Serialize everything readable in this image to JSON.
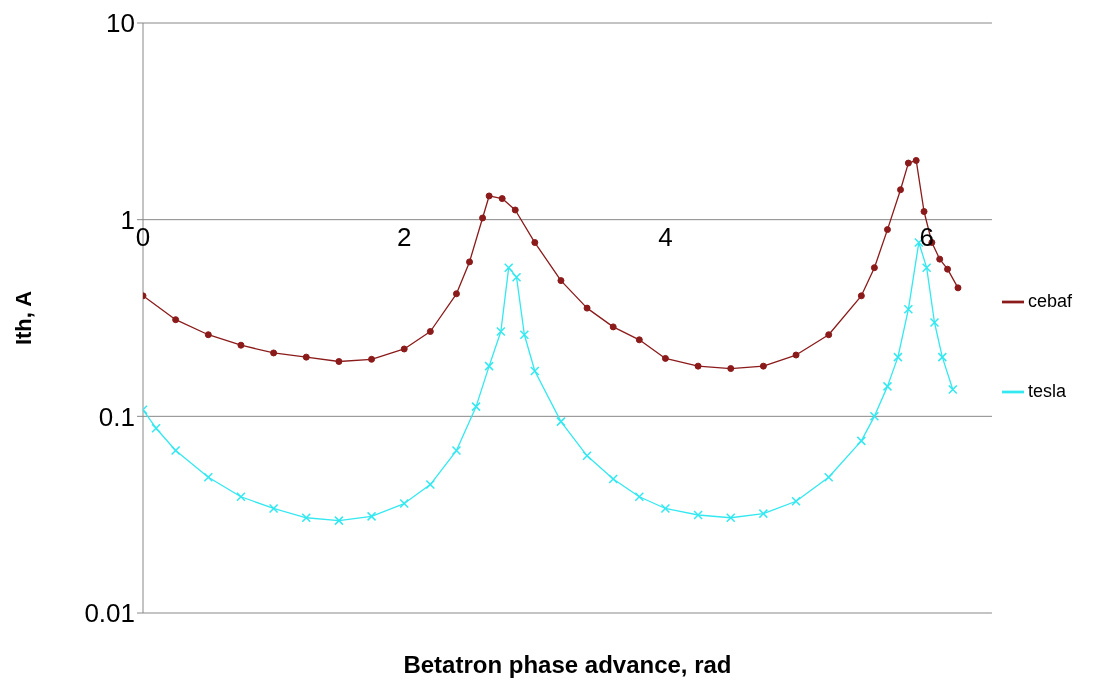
{
  "chart_data": {
    "type": "line",
    "xlabel": "Betatron phase advance, rad",
    "ylabel": "Ith, A",
    "log": "y",
    "grid": "y",
    "legend": "right",
    "line_style": "solid",
    "xlim": [
      0,
      6.5
    ],
    "xticks": [
      0,
      2,
      4,
      6
    ],
    "ylim": [
      0.01,
      10
    ],
    "yticks": [
      0.01,
      0.1,
      1,
      10
    ],
    "series": [
      {
        "name": "tesla",
        "color": "#33e8f0",
        "marker": "cross",
        "x": [
          0,
          0.1,
          0.25,
          0.5,
          0.75,
          1.0,
          1.25,
          1.5,
          1.75,
          2.0,
          2.2,
          2.4,
          2.55,
          2.65,
          2.74,
          2.8,
          2.86,
          2.92,
          3.0,
          3.2,
          3.4,
          3.6,
          3.8,
          4.0,
          4.25,
          4.5,
          4.75,
          5.0,
          5.25,
          5.5,
          5.6,
          5.7,
          5.78,
          5.86,
          5.94,
          6.0,
          6.06,
          6.12,
          6.2
        ],
        "values": [
          0.108,
          0.087,
          0.067,
          0.049,
          0.039,
          0.034,
          0.0305,
          0.0295,
          0.031,
          0.036,
          0.045,
          0.067,
          0.112,
          0.18,
          0.27,
          0.57,
          0.51,
          0.26,
          0.17,
          0.094,
          0.063,
          0.048,
          0.039,
          0.034,
          0.0315,
          0.0305,
          0.032,
          0.037,
          0.049,
          0.075,
          0.1,
          0.142,
          0.2,
          0.35,
          0.765,
          0.57,
          0.3,
          0.2,
          0.137
        ]
      },
      {
        "name": "cebaf",
        "color": "#8b1a1a",
        "marker": "circle",
        "x": [
          0,
          0.25,
          0.5,
          0.75,
          1.0,
          1.25,
          1.5,
          1.75,
          2.0,
          2.2,
          2.4,
          2.5,
          2.6,
          2.65,
          2.75,
          2.85,
          3.0,
          3.2,
          3.4,
          3.6,
          3.8,
          4.0,
          4.25,
          4.5,
          4.75,
          5.0,
          5.25,
          5.5,
          5.6,
          5.7,
          5.8,
          5.86,
          5.92,
          5.98,
          6.04,
          6.1,
          6.16,
          6.24
        ],
        "values": [
          0.41,
          0.31,
          0.26,
          0.23,
          0.21,
          0.2,
          0.19,
          0.195,
          0.22,
          0.27,
          0.42,
          0.61,
          1.02,
          1.32,
          1.28,
          1.12,
          0.765,
          0.49,
          0.355,
          0.285,
          0.245,
          0.197,
          0.18,
          0.175,
          0.18,
          0.205,
          0.26,
          0.41,
          0.57,
          0.89,
          1.42,
          1.94,
          2.0,
          1.1,
          0.765,
          0.63,
          0.56,
          0.45
        ]
      }
    ]
  }
}
